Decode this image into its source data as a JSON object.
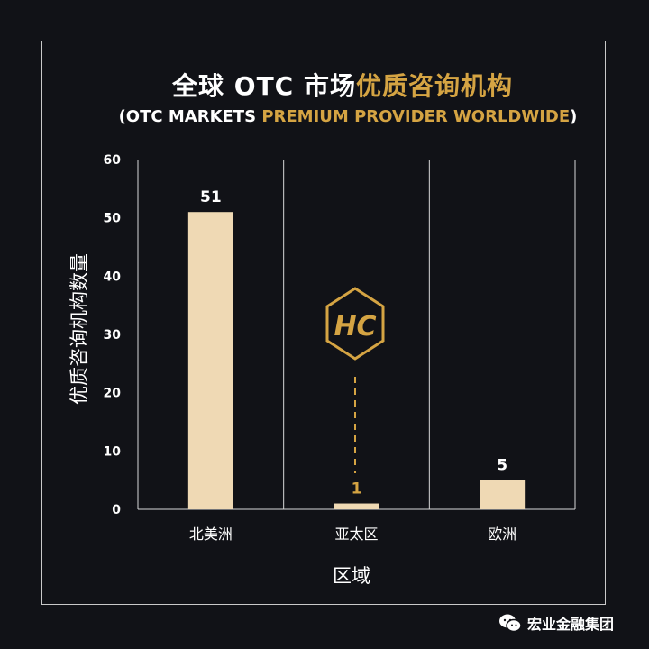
{
  "header": {
    "title_white": "全球 OTC 市场",
    "title_gold": "优质咨询机构",
    "subtitle_open": "(OTC MARKETS ",
    "subtitle_gold": "PREMIUM PROVIDER WORLDWIDE",
    "subtitle_close": ")"
  },
  "chart_data": {
    "type": "bar",
    "categories": [
      "北美洲",
      "亚太区",
      "欧洲"
    ],
    "values": [
      51,
      1,
      5
    ],
    "value_labels": [
      "51",
      "1",
      "5"
    ],
    "xlabel": "区域",
    "ylabel": "优质咨询机构数量",
    "ylim": [
      0,
      60
    ],
    "yticks": [
      "0",
      "10",
      "20",
      "30",
      "40",
      "50",
      "60"
    ],
    "grid": false,
    "bar_color": "#efd9b4",
    "highlight_category": "亚太区",
    "highlight_color": "#d5a443",
    "label_color": "#ffffff",
    "logo_text": "HC"
  },
  "watermark": {
    "icon": "wechat-icon",
    "text": "宏业金融集团"
  }
}
